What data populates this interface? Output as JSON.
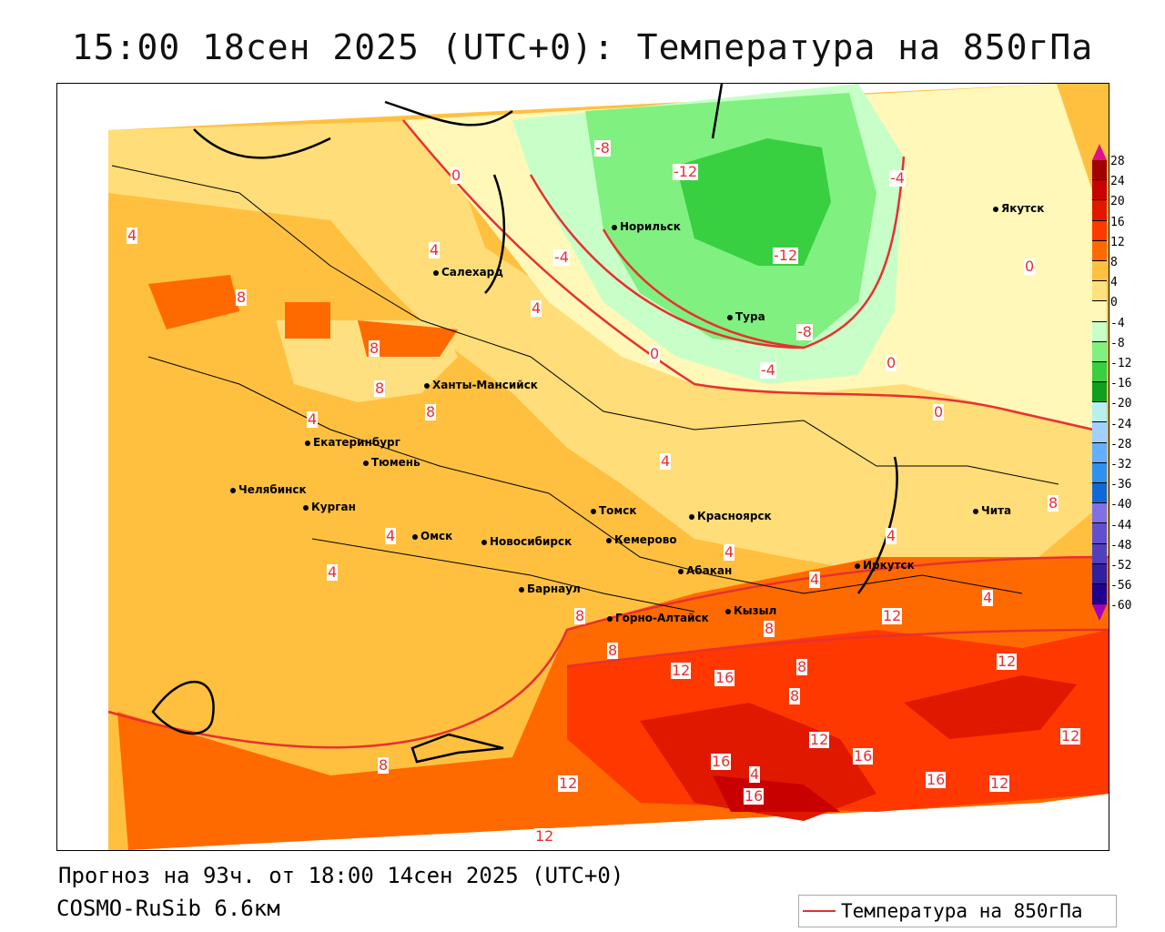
{
  "title": "15:00 18сен 2025 (UTC+0): Температура на 850гПа",
  "forecast": "Прогноз на 93ч. от 18:00 14сен 2025 (UTC+0)",
  "model": "COSMO-RuSib 6.6км",
  "legend_label": "Температура на 850гПа",
  "colorbar": {
    "labels": [
      "28",
      "24",
      "20",
      "16",
      "12",
      "8",
      "4",
      "0",
      "-4",
      "-8",
      "-12",
      "-16",
      "-20",
      "-24",
      "-28",
      "-32",
      "-36",
      "-40",
      "-44",
      "-48",
      "-52",
      "-56",
      "-60"
    ],
    "colors": [
      "#a00000",
      "#c80000",
      "#e01800",
      "#ff3800",
      "#ff6a00",
      "#ffc040",
      "#ffe080",
      "#fff8b8",
      "#c8ffc8",
      "#80f080",
      "#38d040",
      "#10a020",
      "#b8f0f0",
      "#a0d0ff",
      "#60b0ff",
      "#3090f0",
      "#1068d8",
      "#8070e8",
      "#6050d0",
      "#5040c0",
      "#3020a0",
      "#200090"
    ],
    "over_color": "#e0108a",
    "under_color": "#a000c0"
  },
  "cities": [
    "Якутск",
    "Норильск",
    "Салехард",
    "Тура",
    "Ханты-Мансийск",
    "Екатеринбург",
    "Тюмень",
    "Челябинск",
    "Курган",
    "Омск",
    "Новосибирск",
    "Томск",
    "Кемерово",
    "Красноярск",
    "Абакан",
    "Барнаул",
    "Горно-Алтайск",
    "Кызыл",
    "Иркутск",
    "Чита"
  ],
  "contour_labels": [
    "-8",
    "-12",
    "-12",
    "-4",
    "-4",
    "-4",
    "-8",
    "0",
    "0",
    "0",
    "0",
    "0",
    "4",
    "4",
    "4",
    "4",
    "4",
    "4",
    "4",
    "4",
    "4",
    "4",
    "4",
    "8",
    "8",
    "8",
    "8",
    "8",
    "8",
    "8",
    "8",
    "8",
    "8",
    "12",
    "12",
    "12",
    "12",
    "12",
    "12",
    "12",
    "12",
    "16",
    "16",
    "16",
    "16",
    "16",
    "4",
    "8"
  ]
}
